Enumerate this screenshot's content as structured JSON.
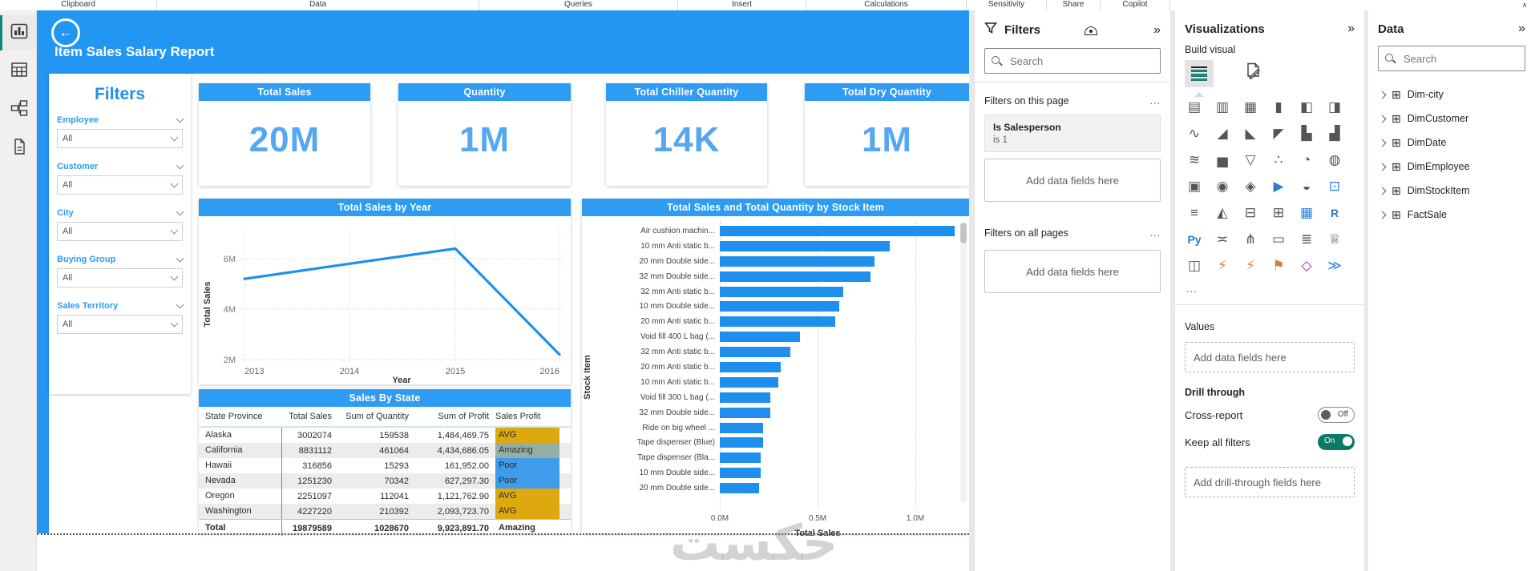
{
  "ribbon": {
    "groups": [
      "Clipboard",
      "Data",
      "Queries",
      "Insert",
      "Calculations",
      "Sensitivity",
      "Share",
      "Copilot"
    ]
  },
  "canvas": {
    "report_title": "Item Sales Salary Report",
    "watermark": "حكست",
    "filters_panel": {
      "title": "Filters",
      "slicers": [
        {
          "label": "Employee",
          "value": "All"
        },
        {
          "label": "Customer",
          "value": "All"
        },
        {
          "label": "City",
          "value": "All"
        },
        {
          "label": "Buying Group",
          "value": "All"
        },
        {
          "label": "Sales Territory",
          "value": "All"
        }
      ]
    },
    "kpi_cards": [
      {
        "title": "Total Sales",
        "value": "20M"
      },
      {
        "title": "Quantity",
        "value": "1M"
      },
      {
        "title": "Total Chiller Quantity",
        "value": "14K"
      },
      {
        "title": "Total Dry Quantity",
        "value": "1M"
      }
    ]
  },
  "chart_data": [
    {
      "type": "line",
      "title": "Total Sales by Year",
      "xlabel": "Year",
      "ylabel": "Total Sales",
      "x": [
        "2013",
        "2014",
        "2015",
        "2016"
      ],
      "values_millions": [
        5.2,
        5.8,
        6.4,
        2.2
      ],
      "yticks": [
        {
          "label": "6M",
          "value": 6
        },
        {
          "label": "4M",
          "value": 4
        },
        {
          "label": "2M",
          "value": 2
        }
      ],
      "ylim_millions": [
        1.8,
        6.9
      ],
      "grid": true,
      "legend_position": "none"
    },
    {
      "type": "bar",
      "orientation": "horizontal",
      "title": "Total Sales and Total Quantity by Stock Item",
      "xlabel": "Total Sales",
      "ylabel": "Stock Item",
      "xticks": [
        {
          "label": "0.0M",
          "value": 0
        },
        {
          "label": "0.5M",
          "value": 0.5
        },
        {
          "label": "1.0M",
          "value": 1.0
        }
      ],
      "xlim_millions": [
        0,
        1.25
      ],
      "categories": [
        "Air cushion machin...",
        "10 mm Anti static b...",
        "20 mm Double side...",
        "32 mm Double side...",
        "32 mm Anti static b...",
        "10 mm Double side...",
        "20 mm Anti static b...",
        "Void fill 400 L bag (...",
        "32 mm Anti static b...",
        "20 mm Anti static b...",
        "10 mm Anti static b...",
        "Void fill 300 L bag (...",
        "32 mm Double side...",
        "Ride on big wheel ...",
        "Tape dispenser (Blue)",
        "Tape dispenser (Bla...",
        "10 mm Double side...",
        "20 mm Double side..."
      ],
      "values_millions": [
        1.2,
        0.87,
        0.79,
        0.77,
        0.63,
        0.61,
        0.59,
        0.41,
        0.36,
        0.31,
        0.3,
        0.26,
        0.26,
        0.22,
        0.22,
        0.21,
        0.21,
        0.2
      ]
    },
    {
      "type": "table",
      "title": "Sales By State",
      "columns": [
        "State Province",
        "Total Sales",
        "Sum of Quantity",
        "Sum of Profit",
        "Sales Profit"
      ],
      "rows": [
        {
          "state": "Alaska",
          "total_sales": "3002074",
          "quantity": "159538",
          "profit": "1,484,469.75",
          "rating": "AVG"
        },
        {
          "state": "California",
          "total_sales": "8831112",
          "quantity": "461064",
          "profit": "4,434,686.05",
          "rating": "Amazing"
        },
        {
          "state": "Hawaii",
          "total_sales": "316856",
          "quantity": "15293",
          "profit": "161,952.00",
          "rating": "Poor"
        },
        {
          "state": "Nevada",
          "total_sales": "1251230",
          "quantity": "70342",
          "profit": "627,297.30",
          "rating": "Poor"
        },
        {
          "state": "Oregon",
          "total_sales": "2251097",
          "quantity": "112041",
          "profit": "1,121,762.90",
          "rating": "AVG"
        },
        {
          "state": "Washington",
          "total_sales": "4227220",
          "quantity": "210392",
          "profit": "2,093,723.70",
          "rating": "AVG"
        }
      ],
      "total_row": {
        "state": "Total",
        "total_sales": "19879589",
        "quantity": "1028670",
        "profit": "9,923,891.70",
        "rating": "Amazing"
      },
      "rating_colors": {
        "AVG": "#DDA90F",
        "Amazing": "#95AFA8",
        "Poor": "#3E9CEA"
      }
    }
  ],
  "filters_pane": {
    "title": "Filters",
    "search_placeholder": "Search",
    "section_page": {
      "label": "Filters on this page",
      "more": "...",
      "filter_name": "Is Salesperson",
      "filter_condition": "is 1",
      "add_label": "Add data fields here"
    },
    "section_all": {
      "label": "Filters on all pages",
      "more": "...",
      "add_label": "Add data fields here"
    }
  },
  "visualizations_pane": {
    "title": "Visualizations",
    "build_visual_label": "Build visual",
    "more": "...",
    "values_label": "Values",
    "values_add_label": "Add data fields here",
    "drill_through_label": "Drill through",
    "cross_report_label": "Cross-report",
    "cross_report_state": "Off",
    "keep_filters_label": "Keep all filters",
    "keep_filters_state": "On",
    "drill_add_label": "Add drill-through fields here",
    "gallery_icons": [
      {
        "name": "stacked-bar-chart-icon",
        "glyph": "▤"
      },
      {
        "name": "stacked-column-chart-icon",
        "glyph": "▥"
      },
      {
        "name": "clustered-bar-chart-icon",
        "glyph": "▦"
      },
      {
        "name": "clustered-column-chart-icon",
        "glyph": "▮"
      },
      {
        "name": "100-stacked-bar-chart-icon",
        "glyph": "◧"
      },
      {
        "name": "100-stacked-column-chart-icon",
        "glyph": "◨"
      },
      {
        "name": "line-chart-icon",
        "glyph": "∿"
      },
      {
        "name": "area-chart-icon",
        "glyph": "◢"
      },
      {
        "name": "stacked-area-chart-icon",
        "glyph": "◣"
      },
      {
        "name": "100-stacked-area-chart-icon",
        "glyph": "◤"
      },
      {
        "name": "line-stacked-column-chart-icon",
        "glyph": "▙"
      },
      {
        "name": "line-clustered-column-chart-icon",
        "glyph": "▟"
      },
      {
        "name": "ribbon-chart-icon",
        "glyph": "≋"
      },
      {
        "name": "waterfall-chart-icon",
        "glyph": "▅"
      },
      {
        "name": "funnel-chart-icon",
        "glyph": "▽"
      },
      {
        "name": "scatter-chart-icon",
        "glyph": "∴"
      },
      {
        "name": "pie-chart-icon",
        "glyph": "◔"
      },
      {
        "name": "donut-chart-icon",
        "glyph": "◍"
      },
      {
        "name": "treemap-icon",
        "glyph": "▣"
      },
      {
        "name": "map-icon",
        "glyph": "◉"
      },
      {
        "name": "filled-map-icon",
        "glyph": "◈"
      },
      {
        "name": "azure-map-icon",
        "glyph": "▶",
        "color": "#2B7CD3"
      },
      {
        "name": "gauge-icon",
        "glyph": "◒"
      },
      {
        "name": "card-icon",
        "glyph": "⊡",
        "color": "#2B7CD3"
      },
      {
        "name": "multi-row-card-icon",
        "glyph": "≡"
      },
      {
        "name": "kpi-icon",
        "glyph": "◭"
      },
      {
        "name": "slicer-icon",
        "glyph": "⊟"
      },
      {
        "name": "table-icon",
        "glyph": "⊞"
      },
      {
        "name": "matrix-icon",
        "glyph": "▦",
        "color": "#2B7CD3"
      },
      {
        "name": "r-script-icon",
        "glyph": "R",
        "color": "#2B7CD3"
      },
      {
        "name": "python-script-icon",
        "glyph": "Py",
        "color": "#2B7CD3"
      },
      {
        "name": "parameters-icon",
        "glyph": "≍"
      },
      {
        "name": "decomposition-tree-icon",
        "glyph": "⋔"
      },
      {
        "name": "qa-icon",
        "glyph": "▭"
      },
      {
        "name": "smart-narrative-icon",
        "glyph": "≣"
      },
      {
        "name": "metrics-icon",
        "glyph": "♕"
      },
      {
        "name": "paginated-report-icon",
        "glyph": "◫"
      },
      {
        "name": "power-bi-quick-card-icon",
        "glyph": "⚡",
        "color": "#D67F3C"
      },
      {
        "name": "power-bi-quick-slicer-icon",
        "glyph": "⚡",
        "color": "#D67F3C"
      },
      {
        "name": "arcgis-map-icon",
        "glyph": "⚑",
        "color": "#D67F3C"
      },
      {
        "name": "power-apps-icon",
        "glyph": "◇",
        "color": "#8A2DA5"
      },
      {
        "name": "power-automate-icon",
        "glyph": "≫",
        "color": "#2B7CD3"
      }
    ]
  },
  "data_pane": {
    "title": "Data",
    "search_placeholder": "Search",
    "tables": [
      "Dim-city",
      "DimCustomer",
      "DimDate",
      "DimEmployee",
      "DimStockItem",
      "FactSale"
    ]
  },
  "colors": {
    "accent_blue": "#1E8FED",
    "header_blue": "#2196F3",
    "visual_title_blue": "#2D9CF2",
    "kpi_value_blue": "#55A7F1",
    "toggle_on": "#0B7A66",
    "rating_avg": "#DDA90F",
    "rating_amazing": "#95AFA8",
    "rating_poor": "#3E9CEA"
  }
}
